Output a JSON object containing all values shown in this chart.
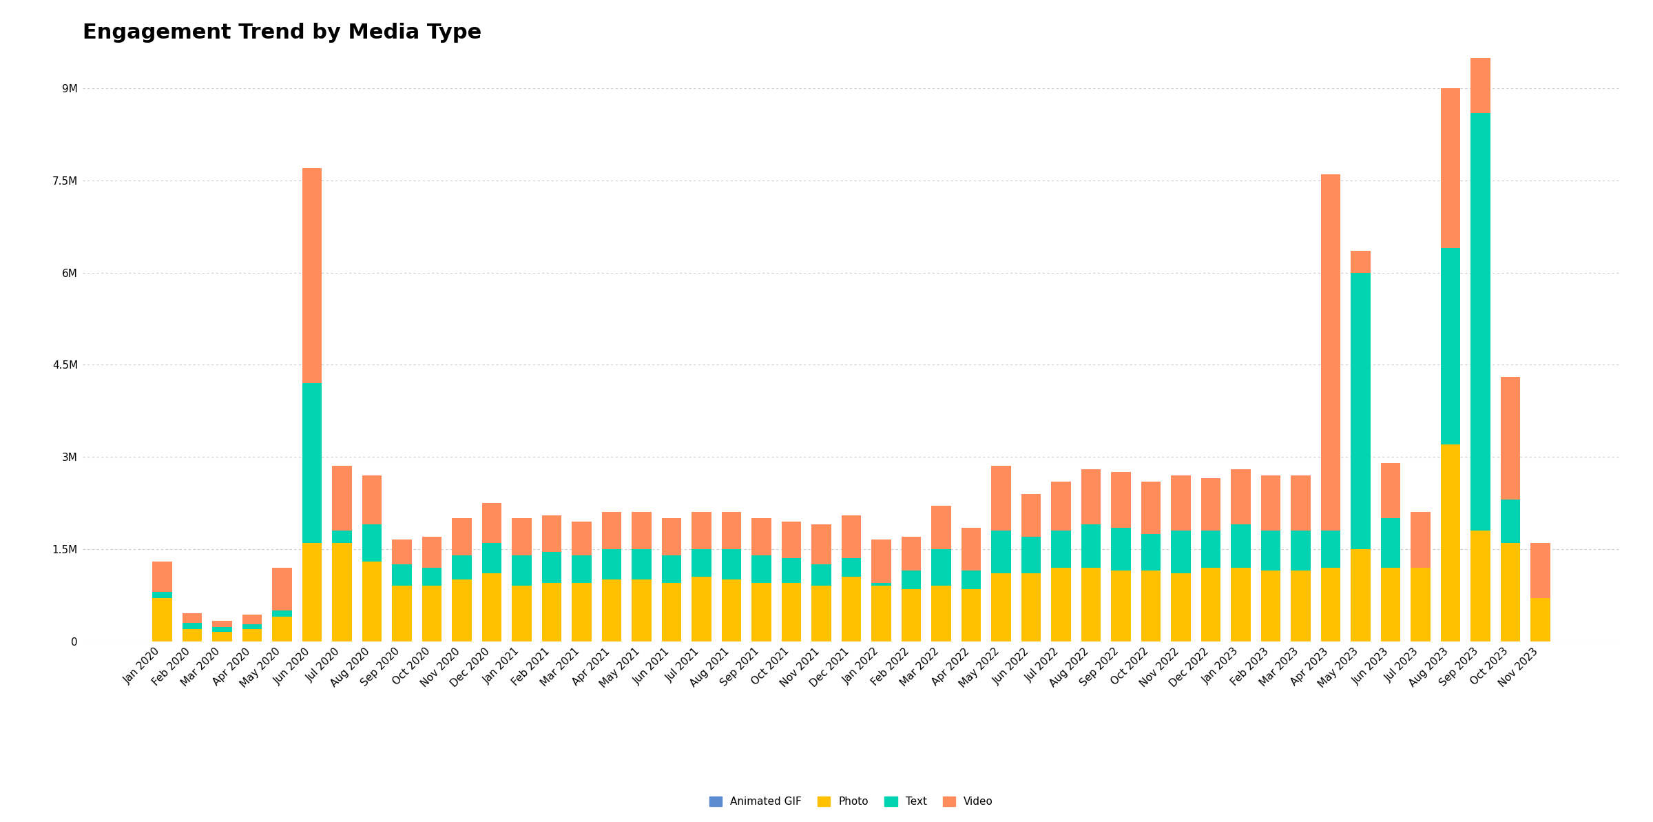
{
  "title": "Engagement Trend by Media Type",
  "categories": [
    "Jan 2020",
    "Feb 2020",
    "Mar 2020",
    "Apr 2020",
    "May 2020",
    "Jun 2020",
    "Jul 2020",
    "Aug 2020",
    "Sep 2020",
    "Oct 2020",
    "Nov 2020",
    "Dec 2020",
    "Jan 2021",
    "Feb 2021",
    "Mar 2021",
    "Apr 2021",
    "May 2021",
    "Jun 2021",
    "Jul 2021",
    "Aug 2021",
    "Sep 2021",
    "Oct 2021",
    "Nov 2021",
    "Dec 2021",
    "Jan 2022",
    "Feb 2022",
    "Mar 2022",
    "Apr 2022",
    "May 2022",
    "Jun 2022",
    "Jul 2022",
    "Aug 2022",
    "Sep 2022",
    "Oct 2022",
    "Nov 2022",
    "Dec 2022",
    "Jan 2023",
    "Feb 2023",
    "Mar 2023",
    "Apr 2023",
    "May 2023",
    "Jun 2023",
    "Jul 2023",
    "Aug 2023",
    "Sep 2023",
    "Oct 2023",
    "Nov 2023"
  ],
  "animated_gif": [
    0,
    0,
    0,
    0,
    0,
    0,
    0,
    0,
    0,
    0,
    0,
    0,
    0,
    0,
    0,
    0,
    0,
    0,
    0,
    0,
    0,
    0,
    0,
    0,
    0,
    0,
    0,
    0,
    0,
    0,
    0,
    0,
    0,
    0,
    0,
    0,
    0,
    0,
    0,
    0,
    0,
    0,
    0,
    0,
    0,
    0,
    0
  ],
  "photo": [
    700000,
    200000,
    150000,
    200000,
    400000,
    1600000,
    1600000,
    1300000,
    900000,
    900000,
    1000000,
    1100000,
    900000,
    950000,
    950000,
    1000000,
    1000000,
    950000,
    1050000,
    1000000,
    950000,
    950000,
    900000,
    1050000,
    900000,
    850000,
    900000,
    850000,
    1100000,
    1100000,
    1200000,
    1200000,
    1150000,
    1150000,
    1100000,
    1200000,
    1200000,
    1150000,
    1150000,
    1200000,
    1500000,
    1200000,
    1200000,
    3200000,
    1800000,
    1600000,
    700000
  ],
  "text": [
    100000,
    100000,
    80000,
    80000,
    100000,
    2600000,
    200000,
    600000,
    350000,
    300000,
    400000,
    500000,
    500000,
    500000,
    450000,
    500000,
    500000,
    450000,
    450000,
    500000,
    450000,
    400000,
    350000,
    300000,
    50000,
    300000,
    600000,
    300000,
    700000,
    600000,
    600000,
    700000,
    700000,
    600000,
    700000,
    600000,
    700000,
    650000,
    650000,
    600000,
    4500000,
    800000,
    0,
    3200000,
    6800000,
    700000,
    0
  ],
  "video": [
    500000,
    150000,
    100000,
    150000,
    700000,
    3500000,
    1050000,
    800000,
    400000,
    500000,
    600000,
    650000,
    600000,
    600000,
    550000,
    600000,
    600000,
    600000,
    600000,
    600000,
    600000,
    600000,
    650000,
    700000,
    700000,
    550000,
    700000,
    700000,
    1050000,
    700000,
    800000,
    900000,
    900000,
    850000,
    900000,
    850000,
    900000,
    900000,
    900000,
    5800000,
    350000,
    900000,
    900000,
    2600000,
    1250000,
    2000000,
    900000
  ],
  "colors": {
    "animated_gif": "#5b8bd0",
    "photo": "#ffc000",
    "text": "#00d4b0",
    "video": "#ff8c5a"
  },
  "ylim": [
    0,
    9500000
  ],
  "yticks": [
    0,
    1500000,
    3000000,
    4500000,
    6000000,
    7500000,
    9000000
  ],
  "ytick_labels": [
    "0",
    "1.5M",
    "3M",
    "4.5M",
    "6M",
    "7.5M",
    "9M"
  ],
  "background_color": "#ffffff",
  "title_fontsize": 22,
  "tick_fontsize": 11,
  "legend_labels": [
    "Animated GIF",
    "Photo",
    "Text",
    "Video"
  ]
}
